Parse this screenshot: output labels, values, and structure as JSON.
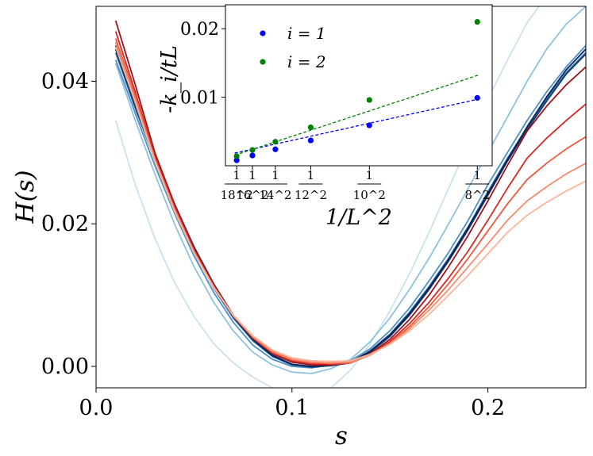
{
  "chart_data": [
    {
      "type": "line",
      "xlabel": "s",
      "ylabel": "H(s)",
      "xlim": [
        0.0,
        0.25
      ],
      "ylim": [
        -0.003,
        0.0505
      ],
      "xticks": [
        0.0,
        0.1,
        0.2
      ],
      "xtick_labels": [
        "0.0",
        "0.1",
        "0.2"
      ],
      "yticks": [
        0.0,
        0.02,
        0.04
      ],
      "ytick_labels": [
        "0.00",
        "0.02",
        "0.04"
      ],
      "grid": false,
      "legend": "none",
      "x": [
        0.01,
        0.02,
        0.03,
        0.04,
        0.05,
        0.06,
        0.07,
        0.08,
        0.09,
        0.1,
        0.11,
        0.12,
        0.13,
        0.14,
        0.15,
        0.16,
        0.17,
        0.18,
        0.19,
        0.2,
        0.21,
        0.22,
        0.23,
        0.24,
        0.25
      ],
      "series": [
        {
          "color": "#cbe2f0",
          "values": [
            0.0345,
            0.0255,
            0.018,
            0.0118,
            0.007,
            0.0032,
            0.0005,
            -0.0015,
            -0.003,
            -0.0038,
            -0.004,
            -0.003,
            -0.0005,
            0.0032,
            0.0078,
            0.013,
            0.0188,
            0.025,
            0.0312,
            0.0375,
            0.043,
            0.0482,
            0.052,
            0.0545,
            0.056
          ]
        },
        {
          "color": "#8fc1e0",
          "values": [
            0.0425,
            0.0345,
            0.027,
            0.02,
            0.014,
            0.009,
            0.005,
            0.002,
            0.0002,
            -0.0008,
            -0.001,
            -0.0003,
            0.001,
            0.0035,
            0.0068,
            0.0108,
            0.0152,
            0.02,
            0.025,
            0.03,
            0.035,
            0.04,
            0.0445,
            0.048,
            0.0505
          ]
        },
        {
          "color": "#4b8fc7",
          "values": [
            0.043,
            0.0355,
            0.0282,
            0.0215,
            0.0155,
            0.0104,
            0.0062,
            0.003,
            0.001,
            0.0,
            -0.0002,
            0.0002,
            0.0008,
            0.0025,
            0.005,
            0.0082,
            0.012,
            0.016,
            0.0205,
            0.0255,
            0.03,
            0.0345,
            0.0385,
            0.042,
            0.045
          ]
        },
        {
          "color": "#2a6aa8",
          "values": [
            0.044,
            0.0362,
            0.029,
            0.0222,
            0.0162,
            0.011,
            0.0068,
            0.0036,
            0.0014,
            0.0002,
            -0.0001,
            0.0002,
            0.0006,
            0.0022,
            0.0045,
            0.0076,
            0.0112,
            0.0152,
            0.0196,
            0.0245,
            0.0292,
            0.0335,
            0.0375,
            0.0412,
            0.044
          ]
        },
        {
          "color": "#163f78",
          "values": [
            0.045,
            0.037,
            0.0296,
            0.0228,
            0.0168,
            0.0116,
            0.0072,
            0.004,
            0.0016,
            0.0003,
            -0.0001,
            0.0001,
            0.0005,
            0.002,
            0.0042,
            0.0072,
            0.0108,
            0.0148,
            0.0192,
            0.024,
            0.0288,
            0.0332,
            0.0372,
            0.041,
            0.0438
          ]
        },
        {
          "color": "#0c2352",
          "values": [
            0.0445,
            0.0366,
            0.0292,
            0.0225,
            0.0165,
            0.0113,
            0.007,
            0.0038,
            0.0015,
            0.0003,
            0.0,
            0.0002,
            0.0006,
            0.0021,
            0.0044,
            0.0074,
            0.011,
            0.015,
            0.0195,
            0.0242,
            0.029,
            0.0336,
            0.0378,
            0.0416,
            0.0445
          ]
        },
        {
          "color": "#a0101a",
          "values": [
            0.0485,
            0.0395,
            0.03,
            0.0228,
            0.0166,
            0.0115,
            0.0072,
            0.004,
            0.0018,
            0.0006,
            0.0002,
            0.0002,
            0.0005,
            0.0018,
            0.0038,
            0.0066,
            0.01,
            0.014,
            0.0184,
            0.0232,
            0.0282,
            0.033,
            0.0365,
            0.0395,
            0.042
          ]
        },
        {
          "color": "#cf2a26",
          "values": [
            0.047,
            0.0385,
            0.0295,
            0.0224,
            0.0163,
            0.0113,
            0.0071,
            0.004,
            0.0019,
            0.0008,
            0.0004,
            0.0003,
            0.0005,
            0.0017,
            0.0035,
            0.006,
            0.009,
            0.0124,
            0.0162,
            0.0205,
            0.025,
            0.0292,
            0.032,
            0.0345,
            0.0368
          ]
        },
        {
          "color": "#ed5a3e",
          "values": [
            0.046,
            0.038,
            0.0292,
            0.0222,
            0.0162,
            0.0112,
            0.0071,
            0.0041,
            0.002,
            0.0009,
            0.0005,
            0.0004,
            0.0005,
            0.0016,
            0.0033,
            0.0056,
            0.0084,
            0.0116,
            0.0152,
            0.019,
            0.0228,
            0.0262,
            0.0285,
            0.0305,
            0.0322
          ]
        },
        {
          "color": "#f8896a",
          "values": [
            0.0455,
            0.0375,
            0.029,
            0.022,
            0.016,
            0.0111,
            0.0071,
            0.0042,
            0.0021,
            0.001,
            0.0006,
            0.0005,
            0.0006,
            0.0016,
            0.0032,
            0.0053,
            0.0079,
            0.0108,
            0.014,
            0.0172,
            0.0205,
            0.0232,
            0.0252,
            0.027,
            0.0285
          ]
        },
        {
          "color": "#fcb49b",
          "values": [
            0.0448,
            0.037,
            0.0288,
            0.0218,
            0.0159,
            0.0111,
            0.0072,
            0.0043,
            0.0023,
            0.0012,
            0.0008,
            0.0007,
            0.0008,
            0.0017,
            0.0031,
            0.005,
            0.0073,
            0.01,
            0.0128,
            0.0158,
            0.0188,
            0.0212,
            0.023,
            0.0246,
            0.026
          ]
        }
      ]
    },
    {
      "type": "scatter",
      "xlabel": "1/L^2",
      "ylabel": "-k_i/tL",
      "xlim": [
        0.0025,
        0.0164
      ],
      "ylim": [
        0.0,
        0.0235
      ],
      "xticks": [
        0.003086,
        0.003906,
        0.005102,
        0.006944,
        0.01,
        0.015625
      ],
      "xtick_labels": [
        "1/18^2",
        "1/16^2",
        "1/14^2",
        "1/12^2",
        "1/10^2",
        "1/8^2"
      ],
      "yticks": [
        0.01,
        0.02
      ],
      "ytick_labels": [
        "0.01",
        "0.02"
      ],
      "legend": "top-left",
      "series": [
        {
          "name": "i = 1",
          "color": "#0000ff",
          "x": [
            0.003086,
            0.003906,
            0.005102,
            0.006944,
            0.01,
            0.015625
          ],
          "values": [
            0.0008,
            0.0015,
            0.0024,
            0.0037,
            0.0059,
            0.0099
          ],
          "fit": [
            0.0,
            0.00062
          ]
        },
        {
          "name": "i = 2",
          "color": "#008000",
          "x": [
            0.003086,
            0.003906,
            0.005102,
            0.006944,
            0.01,
            0.015625
          ],
          "values": [
            0.0014,
            0.0023,
            0.0035,
            0.0056,
            0.0096,
            0.021
          ],
          "fit": [
            -0.0012,
            0.00092
          ]
        }
      ]
    }
  ]
}
